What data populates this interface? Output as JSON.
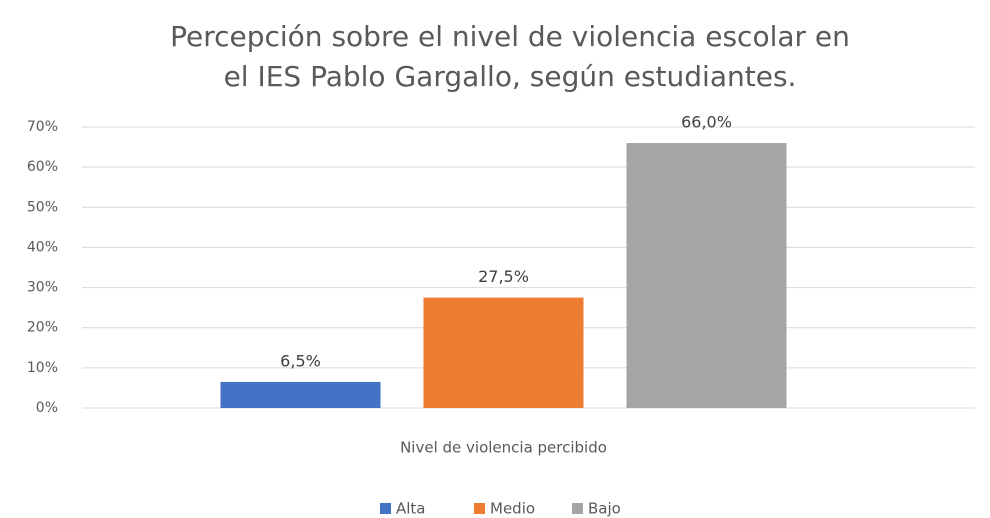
{
  "chart_data": {
    "type": "bar",
    "title": [
      "Percepción sobre el nivel de violencia escolar en",
      "el IES Pablo Gargallo, según estudiantes."
    ],
    "categories": [
      "Nivel de violencia percibido"
    ],
    "series": [
      {
        "name": "Alta",
        "color": "#4472c4",
        "values": [
          6.5
        ],
        "value_labels": [
          "6,5%"
        ]
      },
      {
        "name": "Medio",
        "color": "#ed7d31",
        "values": [
          27.5
        ],
        "value_labels": [
          "27,5%"
        ]
      },
      {
        "name": "Bajo",
        "color": "#a5a5a5",
        "values": [
          66.0
        ],
        "value_labels": [
          "66,0%"
        ]
      }
    ],
    "ylim": [
      0,
      70
    ],
    "yticks": [
      {
        "value": 0,
        "label": "0%"
      },
      {
        "value": 10,
        "label": "10%"
      },
      {
        "value": 20,
        "label": "20%"
      },
      {
        "value": 30,
        "label": "30%"
      },
      {
        "value": 40,
        "label": "40%"
      },
      {
        "value": 50,
        "label": "50%"
      },
      {
        "value": 60,
        "label": "60%"
      },
      {
        "value": 70,
        "label": "70%"
      }
    ],
    "grid": true,
    "legend": "bottom"
  }
}
